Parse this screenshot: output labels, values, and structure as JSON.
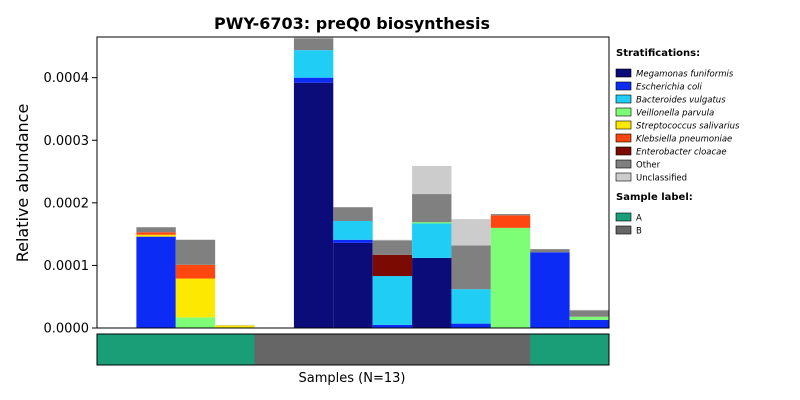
{
  "chart_data": {
    "type": "bar",
    "stacked": true,
    "title": "PWY-6703: preQ0 biosynthesis",
    "xlabel": "Samples (N=13)",
    "ylabel": "Relative abundance",
    "ylim": [
      0,
      0.000465
    ],
    "yticks": [
      0,
      0.0001,
      0.0002,
      0.0003,
      0.0004
    ],
    "ytick_labels": [
      "0.0000",
      "0.0001",
      "0.0002",
      "0.0003",
      "0.0004"
    ],
    "samples": 13,
    "legend_title": "Stratifications:",
    "series": [
      {
        "name": "Megamonas funiformis",
        "color": "#0b0b7a",
        "values": [
          0,
          0,
          0,
          0,
          0,
          0.000392,
          0.000136,
          0.0,
          0.000112,
          0,
          0,
          0,
          0
        ]
      },
      {
        "name": "Escherichia coli",
        "color": "#0c2cf6",
        "values": [
          0,
          0.000146,
          0,
          0,
          0,
          8e-06,
          5e-06,
          5e-06,
          0.0,
          7e-06,
          0,
          0.000121,
          1.3e-05
        ]
      },
      {
        "name": "Bacteroides vulgatus",
        "color": "#1fcdf5",
        "values": [
          0,
          0,
          0,
          0,
          0,
          4.4e-05,
          3e-05,
          7.8e-05,
          5.5e-05,
          5.5e-05,
          0,
          0,
          0
        ]
      },
      {
        "name": "Veillonella parvula",
        "color": "#7dfe76",
        "values": [
          0,
          0,
          1.7e-05,
          0,
          0,
          0,
          0,
          0,
          2e-06,
          0,
          0.00016,
          0,
          5e-06
        ]
      },
      {
        "name": "Streptococcus salivarius",
        "color": "#fde802",
        "values": [
          0,
          3e-06,
          6.2e-05,
          4e-06,
          0,
          0,
          0,
          0,
          0,
          0,
          0,
          0,
          0
        ]
      },
      {
        "name": "Klebsiella pneumoniae",
        "color": "#fe4710",
        "values": [
          0,
          4e-06,
          2.2e-05,
          0,
          0,
          0,
          0,
          0,
          0,
          0,
          2e-05,
          0,
          0
        ]
      },
      {
        "name": "Enterobacter cloacae",
        "color": "#7b0a03",
        "values": [
          0,
          0,
          0,
          0,
          0,
          0,
          0,
          3.4e-05,
          0,
          0,
          0,
          0,
          0
        ]
      },
      {
        "name": "Other",
        "color": "#808080",
        "values": [
          0,
          8e-06,
          4e-05,
          0,
          0,
          1.9e-05,
          2.2e-05,
          2.3e-05,
          4.5e-05,
          7e-05,
          2e-06,
          5e-06,
          1e-05
        ]
      },
      {
        "name": "Unclassified",
        "color": "#cccccc",
        "values": [
          0,
          0,
          0,
          1e-06,
          0,
          2e-06,
          0,
          1e-06,
          4.5e-05,
          4.2e-05,
          0,
          0,
          1e-06
        ]
      }
    ],
    "sample_label": {
      "title": "Sample label:",
      "categories": [
        {
          "name": "A",
          "color": "#1a9e77"
        },
        {
          "name": "B",
          "color": "#666666"
        }
      ],
      "assignments": [
        "A",
        "A",
        "A",
        "A",
        "B",
        "B",
        "B",
        "B",
        "B",
        "B",
        "B",
        "A",
        "A"
      ]
    }
  }
}
